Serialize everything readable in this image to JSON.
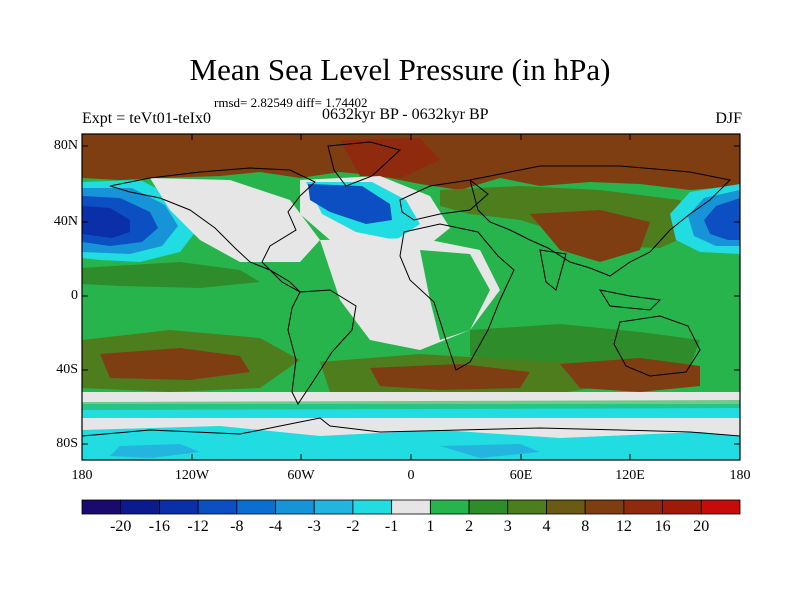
{
  "title": "Mean Sea Level Pressure (in hPa)",
  "stats": "rmsd= 2.82549 diff= 1.74402",
  "experiment": "Expt = teVt01-teIx0",
  "period": "0632kyr BP - 0632kyr BP",
  "season": "DJF",
  "map": {
    "lat_labels": [
      "80N",
      "40N",
      "0",
      "40S",
      "80S"
    ],
    "lon_labels": [
      "180",
      "120W",
      "60W",
      "0",
      "60E",
      "120E",
      "180"
    ]
  },
  "colorbar": {
    "labels": [
      "-20",
      "-16",
      "-12",
      "-8",
      "-4",
      "-3",
      "-2",
      "-1",
      "1",
      "2",
      "3",
      "4",
      "8",
      "12",
      "16",
      "20"
    ],
    "colors": [
      "#1a0a6e",
      "#0b1a8c",
      "#0a2fa8",
      "#0b4fc2",
      "#0a6fd0",
      "#1793d8",
      "#23b5e0",
      "#21dce0",
      "#e6e6e6",
      "#28b44c",
      "#2e8c2a",
      "#4e7d1e",
      "#6a5a14",
      "#7f3d12",
      "#8f2a0e",
      "#a01a0a",
      "#c80a0a"
    ]
  },
  "field_colors": {
    "land_outline": "#000000",
    "gray": "#e6e6e6",
    "green": "#28b44c",
    "dkgreen": "#2e8c2a",
    "olive": "#4e7d1e",
    "brown": "#7f3d12",
    "cyan": "#21dce0",
    "ltblue": "#23b5e0",
    "blue": "#0b4fc2",
    "dkblue": "#0a2fa8"
  }
}
